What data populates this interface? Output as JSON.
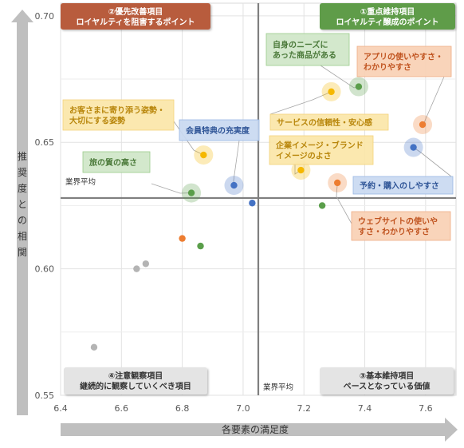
{
  "chart_data": {
    "type": "scatter",
    "xlabel": "各要素の満足度",
    "ylabel": "推奨度との相関",
    "xlim": [
      6.4,
      7.7
    ],
    "ylim": [
      0.55,
      0.705
    ],
    "x_ticks": [
      6.4,
      6.6,
      6.8,
      7.0,
      7.2,
      7.4,
      7.6
    ],
    "y_ticks": [
      0.55,
      0.6,
      0.65,
      0.7
    ],
    "x_tick_labels": [
      "6.4",
      "6.6",
      "6.8",
      "7.0",
      "7.2",
      "7.4",
      "7.6"
    ],
    "y_tick_labels": [
      "0.55",
      "0.60",
      "0.65",
      "0.70"
    ],
    "average_x": 7.05,
    "average_y": 0.628,
    "average_labels": {
      "horizontal": "業界平均",
      "vertical": "業界平均"
    },
    "grid": true,
    "quadrants": [
      {
        "key": "q2",
        "text": "②優先改善項目\nロイヤルティを阻害するポイント",
        "fill": "#b85c3c",
        "text_color": "#ffffff"
      },
      {
        "key": "q1",
        "text": "①重点維持項目\nロイヤルティ醸成のポイント",
        "fill": "#5e9c4a",
        "text_color": "#ffffff"
      },
      {
        "key": "q4",
        "text": "④注意観察項目\n継続的に観察していくべき項目",
        "fill": "#e4e4e4",
        "text_color": "#333333"
      },
      {
        "key": "q3",
        "text": "③基本維持項目\nベースとなっている価値",
        "fill": "#e4e4e4",
        "text_color": "#333333"
      }
    ],
    "points": [
      {
        "x": 7.38,
        "y": 0.672,
        "color": "#5a9e4a",
        "highlight": true
      },
      {
        "x": 7.59,
        "y": 0.657,
        "color": "#ed7d31",
        "highlight": true
      },
      {
        "x": 7.29,
        "y": 0.67,
        "color": "#f5b800",
        "highlight": true
      },
      {
        "x": 7.56,
        "y": 0.648,
        "color": "#4472c4",
        "highlight": true
      },
      {
        "x": 7.19,
        "y": 0.639,
        "color": "#f5b800",
        "highlight": true
      },
      {
        "x": 7.31,
        "y": 0.634,
        "color": "#ed7d31",
        "highlight": true
      },
      {
        "x": 6.87,
        "y": 0.645,
        "color": "#f5b800",
        "highlight": true
      },
      {
        "x": 6.97,
        "y": 0.633,
        "color": "#4472c4",
        "highlight": true
      },
      {
        "x": 6.83,
        "y": 0.63,
        "color": "#5a9e4a",
        "highlight": true
      },
      {
        "x": 7.03,
        "y": 0.626,
        "color": "#4472c4",
        "highlight": false
      },
      {
        "x": 7.26,
        "y": 0.625,
        "color": "#5a9e4a",
        "highlight": false
      },
      {
        "x": 6.8,
        "y": 0.612,
        "color": "#ed7d31",
        "highlight": false
      },
      {
        "x": 6.86,
        "y": 0.609,
        "color": "#5a9e4a",
        "highlight": false
      },
      {
        "x": 6.68,
        "y": 0.602,
        "color": "#b4b4b4",
        "highlight": false
      },
      {
        "x": 6.65,
        "y": 0.6,
        "color": "#b4b4b4",
        "highlight": false
      },
      {
        "x": 6.51,
        "y": 0.569,
        "color": "#b4b4b4",
        "highlight": false
      }
    ],
    "annotations": [
      {
        "text": "自身のニーズに\nあった商品がある",
        "fill": "#cfe6c8",
        "stroke": "#9ccc8c",
        "text_color": "#4b7a3a",
        "point": 0
      },
      {
        "text": "アプリの使いやすさ・\nわかりやすさ",
        "fill": "#f8d0b4",
        "stroke": "#efac86",
        "text_color": "#c0531f",
        "point": 1
      },
      {
        "text": "サービスの信頼性・安心感",
        "fill": "#fbe6a8",
        "stroke": "#f3d27a",
        "text_color": "#b8860b",
        "point": 2
      },
      {
        "text": "予約・購入のしやすさ",
        "fill": "#c9d9f1",
        "stroke": "#9ab7e3",
        "text_color": "#2f5597",
        "point": 3
      },
      {
        "text": "企業イメージ・ブランド\nイメージのよさ",
        "fill": "#fbe6a8",
        "stroke": "#f3d27a",
        "text_color": "#b8860b",
        "point": 4
      },
      {
        "text": "ウェブサイトの使いや\nすさ・わかりやすさ",
        "fill": "#f8d0b4",
        "stroke": "#efac86",
        "text_color": "#c0531f",
        "point": 5
      },
      {
        "text": "お客さまに寄り添う姿勢・\n大切にする姿勢",
        "fill": "#fbe6a8",
        "stroke": "#f3d27a",
        "text_color": "#b8860b",
        "point": 6
      },
      {
        "text": "会員特典の充実度",
        "fill": "#c9d9f1",
        "stroke": "#9ab7e3",
        "text_color": "#2f5597",
        "point": 7
      },
      {
        "text": "旅の質の高さ",
        "fill": "#cfe6c8",
        "stroke": "#9ccc8c",
        "text_color": "#4b7a3a",
        "point": 8
      }
    ]
  }
}
